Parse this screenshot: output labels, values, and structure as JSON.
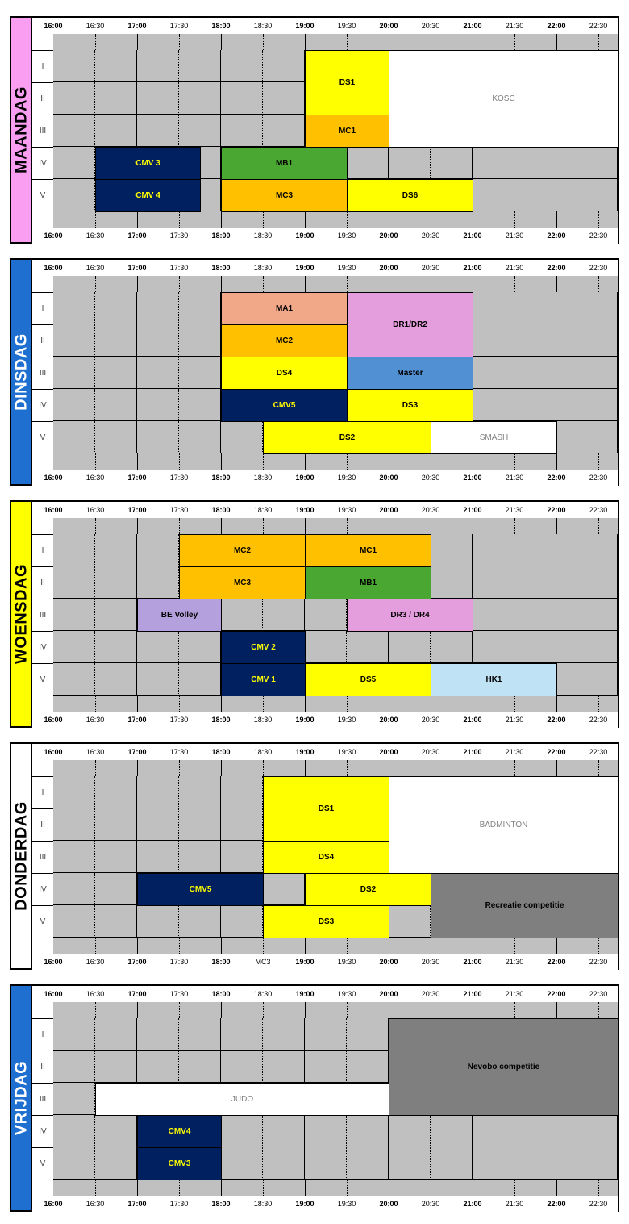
{
  "times": [
    "16:00",
    "16:30",
    "17:00",
    "17:30",
    "18:00",
    "18:30",
    "19:00",
    "19:30",
    "20:00",
    "20:30",
    "21:00",
    "21:30",
    "22:00",
    "22:30"
  ],
  "rows": [
    "I",
    "II",
    "III",
    "IV",
    "V"
  ],
  "colors": {
    "grid": "#c0c0c0",
    "yellow": "#ffff00",
    "orange": "#ffc000",
    "navy": "#002060",
    "green": "#4aa832",
    "salmon": "#f0a888",
    "pink": "#e59edd",
    "blue": "#5290d4",
    "lavender": "#b4a0dc",
    "lightblue": "#bfe3f5",
    "darkgray": "#7f7f7f",
    "white": "#ffffff"
  },
  "days": [
    {
      "name": "MAANDAG",
      "label_bg": "#f99ef1",
      "label_color": "#000000",
      "bottom_times_override": {},
      "blocks": [
        {
          "label": "DS1",
          "start": 6,
          "end": 8,
          "rows": [
            0,
            1
          ],
          "color": "yellow"
        },
        {
          "label": "KOSC",
          "start": 8,
          "end": 14,
          "rows": [
            0,
            2
          ],
          "color": "white",
          "light": true
        },
        {
          "label": "MC1",
          "start": 6,
          "end": 8,
          "rows": [
            2,
            2
          ],
          "color": "orange"
        },
        {
          "label": "CMV 3",
          "start": 1,
          "end": 3.5,
          "rows": [
            3,
            3
          ],
          "color": "navy",
          "text": "#ffff00"
        },
        {
          "label": "MB1",
          "start": 4,
          "end": 7,
          "rows": [
            3,
            3
          ],
          "color": "green"
        },
        {
          "label": "CMV 4",
          "start": 1,
          "end": 3.5,
          "rows": [
            4,
            4
          ],
          "color": "navy",
          "text": "#ffff00"
        },
        {
          "label": "MC3",
          "start": 4,
          "end": 7,
          "rows": [
            4,
            4
          ],
          "color": "orange"
        },
        {
          "label": "DS6",
          "start": 7,
          "end": 10,
          "rows": [
            4,
            4
          ],
          "color": "yellow"
        }
      ]
    },
    {
      "name": "DINSDAG",
      "label_bg": "#1f6fd0",
      "label_color": "#ffffff",
      "bottom_times_override": {},
      "blocks": [
        {
          "label": "MA1",
          "start": 4,
          "end": 7,
          "rows": [
            0,
            0
          ],
          "color": "salmon"
        },
        {
          "label": "DR1/DR2",
          "start": 7,
          "end": 10,
          "rows": [
            0,
            1
          ],
          "color": "pink"
        },
        {
          "label": "MC2",
          "start": 4,
          "end": 7,
          "rows": [
            1,
            1
          ],
          "color": "orange"
        },
        {
          "label": "DS4",
          "start": 4,
          "end": 7,
          "rows": [
            2,
            2
          ],
          "color": "yellow"
        },
        {
          "label": "Master",
          "start": 7,
          "end": 10,
          "rows": [
            2,
            2
          ],
          "color": "blue"
        },
        {
          "label": "CMV5",
          "start": 4,
          "end": 7,
          "rows": [
            3,
            3
          ],
          "color": "navy",
          "text": "#ffff00"
        },
        {
          "label": "DS3",
          "start": 7,
          "end": 10,
          "rows": [
            3,
            3
          ],
          "color": "yellow"
        },
        {
          "label": "DS2",
          "start": 5,
          "end": 9,
          "rows": [
            4,
            4
          ],
          "color": "yellow"
        },
        {
          "label": "SMASH",
          "start": 9,
          "end": 12,
          "rows": [
            4,
            4
          ],
          "color": "white",
          "light": true
        }
      ]
    },
    {
      "name": "WOENSDAG",
      "label_bg": "#ffff00",
      "label_color": "#000000",
      "bottom_times_override": {},
      "blocks": [
        {
          "label": "MC2",
          "start": 3,
          "end": 6,
          "rows": [
            0,
            0
          ],
          "color": "orange"
        },
        {
          "label": "MC1",
          "start": 6,
          "end": 9,
          "rows": [
            0,
            0
          ],
          "color": "orange"
        },
        {
          "label": "MC3",
          "start": 3,
          "end": 6,
          "rows": [
            1,
            1
          ],
          "color": "orange"
        },
        {
          "label": "MB1",
          "start": 6,
          "end": 9,
          "rows": [
            1,
            1
          ],
          "color": "green"
        },
        {
          "label": "BE Volley",
          "start": 2,
          "end": 4,
          "rows": [
            2,
            2
          ],
          "color": "lavender"
        },
        {
          "label": "DR3 / DR4",
          "start": 7,
          "end": 10,
          "rows": [
            2,
            2
          ],
          "color": "pink"
        },
        {
          "label": "CMV 2",
          "start": 4,
          "end": 6,
          "rows": [
            3,
            3
          ],
          "color": "navy",
          "text": "#ffff00"
        },
        {
          "label": "CMV 1",
          "start": 4,
          "end": 6,
          "rows": [
            4,
            4
          ],
          "color": "navy",
          "text": "#ffff00"
        },
        {
          "label": "DS5",
          "start": 6,
          "end": 9,
          "rows": [
            4,
            4
          ],
          "color": "yellow"
        },
        {
          "label": "HK1",
          "start": 9,
          "end": 12,
          "rows": [
            4,
            4
          ],
          "color": "lightblue"
        }
      ]
    },
    {
      "name": "DONDERDAG",
      "label_bg": "#ffffff",
      "label_color": "#000000",
      "bottom_times_override": {
        "5": "MC3"
      },
      "blocks": [
        {
          "label": "DS1",
          "start": 5,
          "end": 8,
          "rows": [
            0,
            1
          ],
          "color": "yellow"
        },
        {
          "label": "BADMINTON",
          "start": 8,
          "end": 14,
          "rows": [
            0,
            2
          ],
          "color": "white",
          "light": true
        },
        {
          "label": "DS4",
          "start": 5,
          "end": 8,
          "rows": [
            2,
            2
          ],
          "color": "yellow"
        },
        {
          "label": "CMV5",
          "start": 2,
          "end": 5,
          "rows": [
            3,
            3
          ],
          "color": "navy",
          "text": "#ffff00"
        },
        {
          "label": "DS2",
          "start": 6,
          "end": 9,
          "rows": [
            3,
            3
          ],
          "color": "yellow"
        },
        {
          "label": "Recreatie competitie",
          "start": 9,
          "end": 14,
          "rows": [
            3,
            4
          ],
          "color": "darkgray"
        },
        {
          "label": "DS3",
          "start": 5,
          "end": 8,
          "rows": [
            4,
            4
          ],
          "color": "yellow"
        }
      ]
    },
    {
      "name": "VRIJDAG",
      "label_bg": "#1f6fd0",
      "label_color": "#ffffff",
      "bottom_times_override": {},
      "blocks": [
        {
          "label": "Nevobo competitie",
          "start": 8,
          "end": 13.5,
          "rows": [
            0,
            2
          ],
          "color": "darkgray"
        },
        {
          "label": "JUDO",
          "start": 1,
          "end": 8,
          "rows": [
            2,
            2
          ],
          "color": "white",
          "light": true
        },
        {
          "label": "CMV4",
          "start": 2,
          "end": 4,
          "rows": [
            3,
            3
          ],
          "color": "navy",
          "text": "#ffff00"
        },
        {
          "label": "CMV3",
          "start": 2,
          "end": 4,
          "rows": [
            4,
            4
          ],
          "color": "navy",
          "text": "#ffff00"
        }
      ]
    }
  ]
}
